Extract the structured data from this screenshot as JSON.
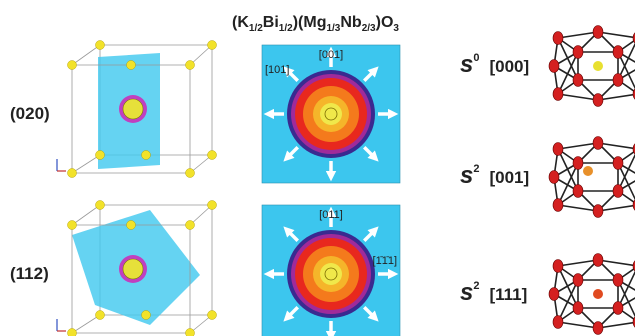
{
  "figure": {
    "title": [
      "(K",
      "1/2",
      "Bi",
      "1/2",
      ")(Mg",
      "1/3",
      "Nb",
      "2/3",
      ")O",
      "3"
    ],
    "rows": [
      {
        "label": "(020)",
        "map_labels": [
          "[001]",
          "[101]"
        ]
      },
      {
        "label": "(112)",
        "map_labels": [
          "[011]",
          "[1̄1̄1]"
        ]
      }
    ],
    "states": [
      {
        "symbol": "s",
        "superscript": "0",
        "direction": "[000]"
      },
      {
        "symbol": "s",
        "superscript": "2",
        "direction": "[001]"
      },
      {
        "symbol": "s",
        "superscript": "2",
        "direction": "[111]"
      }
    ]
  }
}
